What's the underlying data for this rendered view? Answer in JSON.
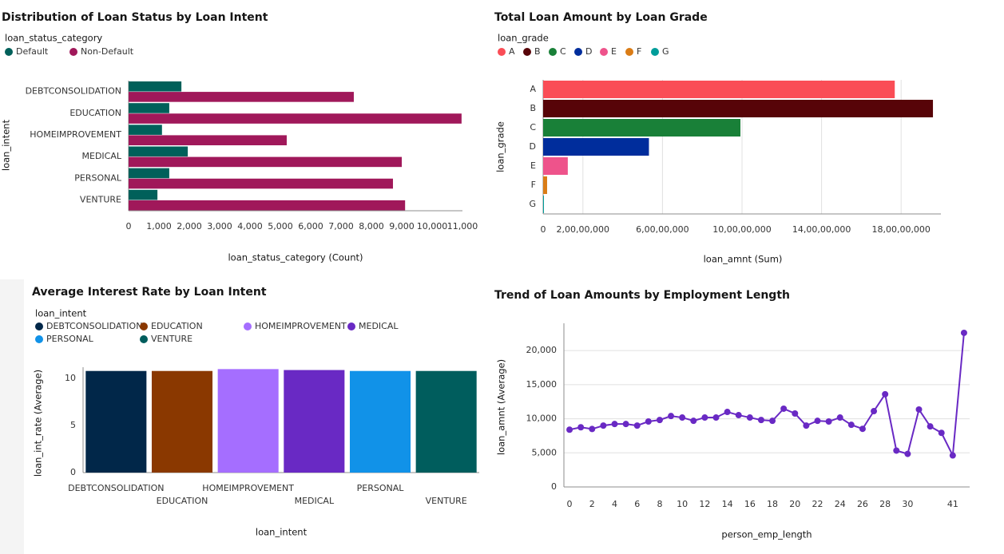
{
  "chart_data": [
    {
      "type": "bar",
      "horizontal": true,
      "title": "Distribution of Loan Status by Loan Intent",
      "legend_title": "loan_status_category",
      "categories": [
        "DEBTCONSOLIDATION",
        "EDUCATION",
        "HOMEIMPROVEMENT",
        "MEDICAL",
        "PERSONAL",
        "VENTURE"
      ],
      "series": [
        {
          "name": "Default",
          "color": "#00605a",
          "values": [
            1740,
            1340,
            1100,
            1950,
            1340,
            950
          ]
        },
        {
          "name": "Non-Default",
          "color": "#a0185a",
          "values": [
            7420,
            10970,
            5210,
            9000,
            8710,
            9110
          ]
        }
      ],
      "xlabel": "loan_status_category (Count)",
      "ylabel": "loan_intent",
      "xlim": [
        0,
        11000
      ],
      "xticks": [
        0,
        {
          "value": 1000,
          "label": "1,000"
        },
        {
          "value": 2000,
          "label": "2,000"
        },
        {
          "value": 3000,
          "label": "3,000"
        },
        {
          "value": 4000,
          "label": "4,000"
        },
        {
          "value": 5000,
          "label": "5,000"
        },
        {
          "value": 6000,
          "label": "6,000"
        },
        {
          "value": 7000,
          "label": "7,000"
        },
        {
          "value": 8000,
          "label": "8,000"
        },
        {
          "value": 9000,
          "label": "9,000"
        },
        {
          "value": 10000,
          "label": "10,000"
        },
        {
          "value": 11000,
          "label": "11,000"
        }
      ],
      "grid": false
    },
    {
      "type": "bar",
      "horizontal": true,
      "title": "Total Loan Amount by Loan Grade",
      "legend_title": "loan_grade",
      "categories": [
        "A",
        "B",
        "C",
        "D",
        "E",
        "F",
        "G"
      ],
      "values": [
        176800000,
        196000000,
        99200000,
        53200000,
        12400000,
        2000000,
        400000
      ],
      "colors": [
        "#fa4d56",
        "#570408",
        "#198038",
        "#002d9c",
        "#ee538b",
        "#da7c16",
        "#009d9a"
      ],
      "xlabel": "loan_amnt (Sum)",
      "ylabel": "loan_grade",
      "xlim": [
        0,
        200000000
      ],
      "xticks": [
        0,
        {
          "value": 20000000,
          "label": "2,00,00,000"
        },
        {
          "value": 60000000,
          "label": "6,00,00,000"
        },
        {
          "value": 100000000,
          "label": "10,00,00,000"
        },
        {
          "value": 140000000,
          "label": "14,00,00,000"
        },
        {
          "value": 180000000,
          "label": "18,00,00,000"
        }
      ],
      "grid": true
    },
    {
      "type": "bar",
      "horizontal": false,
      "title": "Average Interest Rate by Loan Intent",
      "legend_title": "loan_intent",
      "categories": [
        "DEBTCONSOLIDATION",
        "EDUCATION",
        "HOMEIMPROVEMENT",
        "MEDICAL",
        "PERSONAL",
        "VENTURE"
      ],
      "values": [
        10.8,
        10.8,
        11.0,
        10.9,
        10.8,
        10.8
      ],
      "colors": [
        "#012749",
        "#8a3800",
        "#a56eff",
        "#6929c4",
        "#1192e8",
        "#005d5d"
      ],
      "xlabel": "loan_intent",
      "ylabel": "loan_int_rate (Average)",
      "ylim": [
        0,
        11.2
      ],
      "yticks": [
        0,
        5,
        10
      ],
      "grid": false
    },
    {
      "type": "line",
      "title": "Trend of Loan Amounts by Employment Length",
      "categories": [
        "0",
        null,
        "2",
        null,
        "4",
        null,
        "6",
        null,
        "8",
        null,
        "10",
        null,
        "12",
        null,
        "14",
        null,
        "16",
        null,
        "18",
        null,
        "20",
        null,
        "22",
        null,
        "24",
        null,
        "26",
        null,
        "28",
        null,
        "30",
        null,
        null,
        null,
        "41",
        null
      ],
      "values": [
        8400,
        8750,
        8500,
        9000,
        9230,
        9230,
        9000,
        9600,
        9820,
        10400,
        10180,
        9700,
        10180,
        10180,
        11000,
        10530,
        10180,
        9820,
        9700,
        11480,
        10770,
        9000,
        9700,
        9600,
        10180,
        9110,
        8520,
        11120,
        13600,
        5330,
        4850,
        11360,
        8880,
        7930,
        4620,
        22600
      ],
      "color": "#6929c4",
      "xlabel": "person_emp_length",
      "ylabel": "loan_amnt (Average)",
      "ylim": [
        0,
        24000
      ],
      "yticks": [
        0,
        {
          "value": 5000,
          "label": "5,000"
        },
        {
          "value": 10000,
          "label": "10,000"
        },
        {
          "value": 15000,
          "label": "15,000"
        },
        {
          "value": 20000,
          "label": "20,000"
        }
      ],
      "grid": true
    }
  ]
}
